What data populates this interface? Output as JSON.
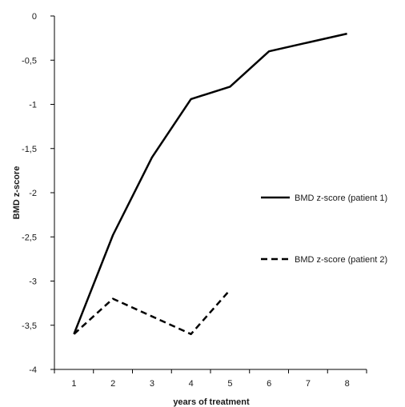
{
  "chart_data": {
    "type": "line",
    "xlabel": "years of treatment",
    "ylabel": "BMD z-score",
    "x_categories": [
      1,
      2,
      3,
      4,
      5,
      6,
      7,
      8
    ],
    "xlim": [
      0.5,
      8.5
    ],
    "ylim": [
      -4,
      0
    ],
    "y_ticks": [
      0,
      -0.5,
      -1,
      -1.5,
      -2,
      -2.5,
      -3,
      -3.5,
      -4
    ],
    "y_tick_labels": [
      "0",
      "-0,5",
      "-1",
      "-1,5",
      "-2",
      "-2,5",
      "-3",
      "-3,5",
      "-4"
    ],
    "grid": false,
    "legend_position": "right",
    "series": [
      {
        "name": "BMD z-score (patient 1)",
        "line_style": "solid",
        "color": "#000000",
        "x": [
          1,
          2,
          3,
          4,
          5,
          6,
          7,
          8
        ],
        "y": [
          -3.6,
          -2.48,
          -1.6,
          -0.94,
          -0.8,
          -0.4,
          -0.3,
          -0.2
        ]
      },
      {
        "name": "BMD z-score (patient 2)",
        "line_style": "dashed",
        "color": "#000000",
        "x": [
          1,
          2,
          3,
          4,
          5
        ],
        "y": [
          -3.6,
          -3.2,
          -3.4,
          -3.6,
          -3.1
        ]
      }
    ]
  }
}
